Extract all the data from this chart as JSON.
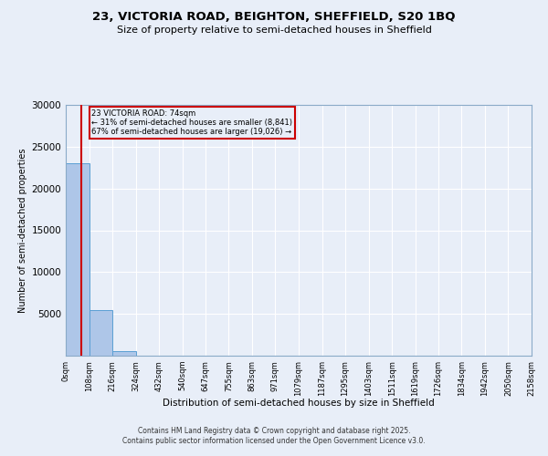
{
  "title": "23, VICTORIA ROAD, BEIGHTON, SHEFFIELD, S20 1BQ",
  "subtitle": "Size of property relative to semi-detached houses in Sheffield",
  "xlabel": "Distribution of semi-detached houses by size in Sheffield",
  "ylabel": "Number of semi-detached properties",
  "property_size": 74,
  "annotation_line1": "23 VICTORIA ROAD: 74sqm",
  "annotation_line2": "← 31% of semi-detached houses are smaller (8,841)",
  "annotation_line3": "67% of semi-detached houses are larger (19,026) →",
  "bar_counts": [
    23000,
    5500,
    500,
    30,
    15,
    8,
    4,
    2,
    1,
    1,
    0,
    0,
    0,
    0,
    0,
    0,
    0,
    0,
    0,
    0
  ],
  "bin_edges": [
    0,
    108,
    216,
    324,
    432,
    540,
    647,
    755,
    863,
    971,
    1079,
    1187,
    1295,
    1403,
    1511,
    1619,
    1726,
    1834,
    1942,
    2050,
    2158
  ],
  "tick_labels": [
    "0sqm",
    "108sqm",
    "216sqm",
    "324sqm",
    "432sqm",
    "540sqm",
    "647sqm",
    "755sqm",
    "863sqm",
    "971sqm",
    "1079sqm",
    "1187sqm",
    "1295sqm",
    "1403sqm",
    "1511sqm",
    "1619sqm",
    "1726sqm",
    "1834sqm",
    "1942sqm",
    "2050sqm",
    "2158sqm"
  ],
  "bar_color": "#aec6e8",
  "bar_edge_color": "#5a9fd4",
  "vline_color": "#cc0000",
  "annotation_box_color": "#cc0000",
  "background_color": "#e8eef8",
  "grid_color": "#ffffff",
  "ylim": [
    0,
    30000
  ],
  "yticks": [
    0,
    5000,
    10000,
    15000,
    20000,
    25000,
    30000
  ],
  "footer_line1": "Contains HM Land Registry data © Crown copyright and database right 2025.",
  "footer_line2": "Contains public sector information licensed under the Open Government Licence v3.0."
}
